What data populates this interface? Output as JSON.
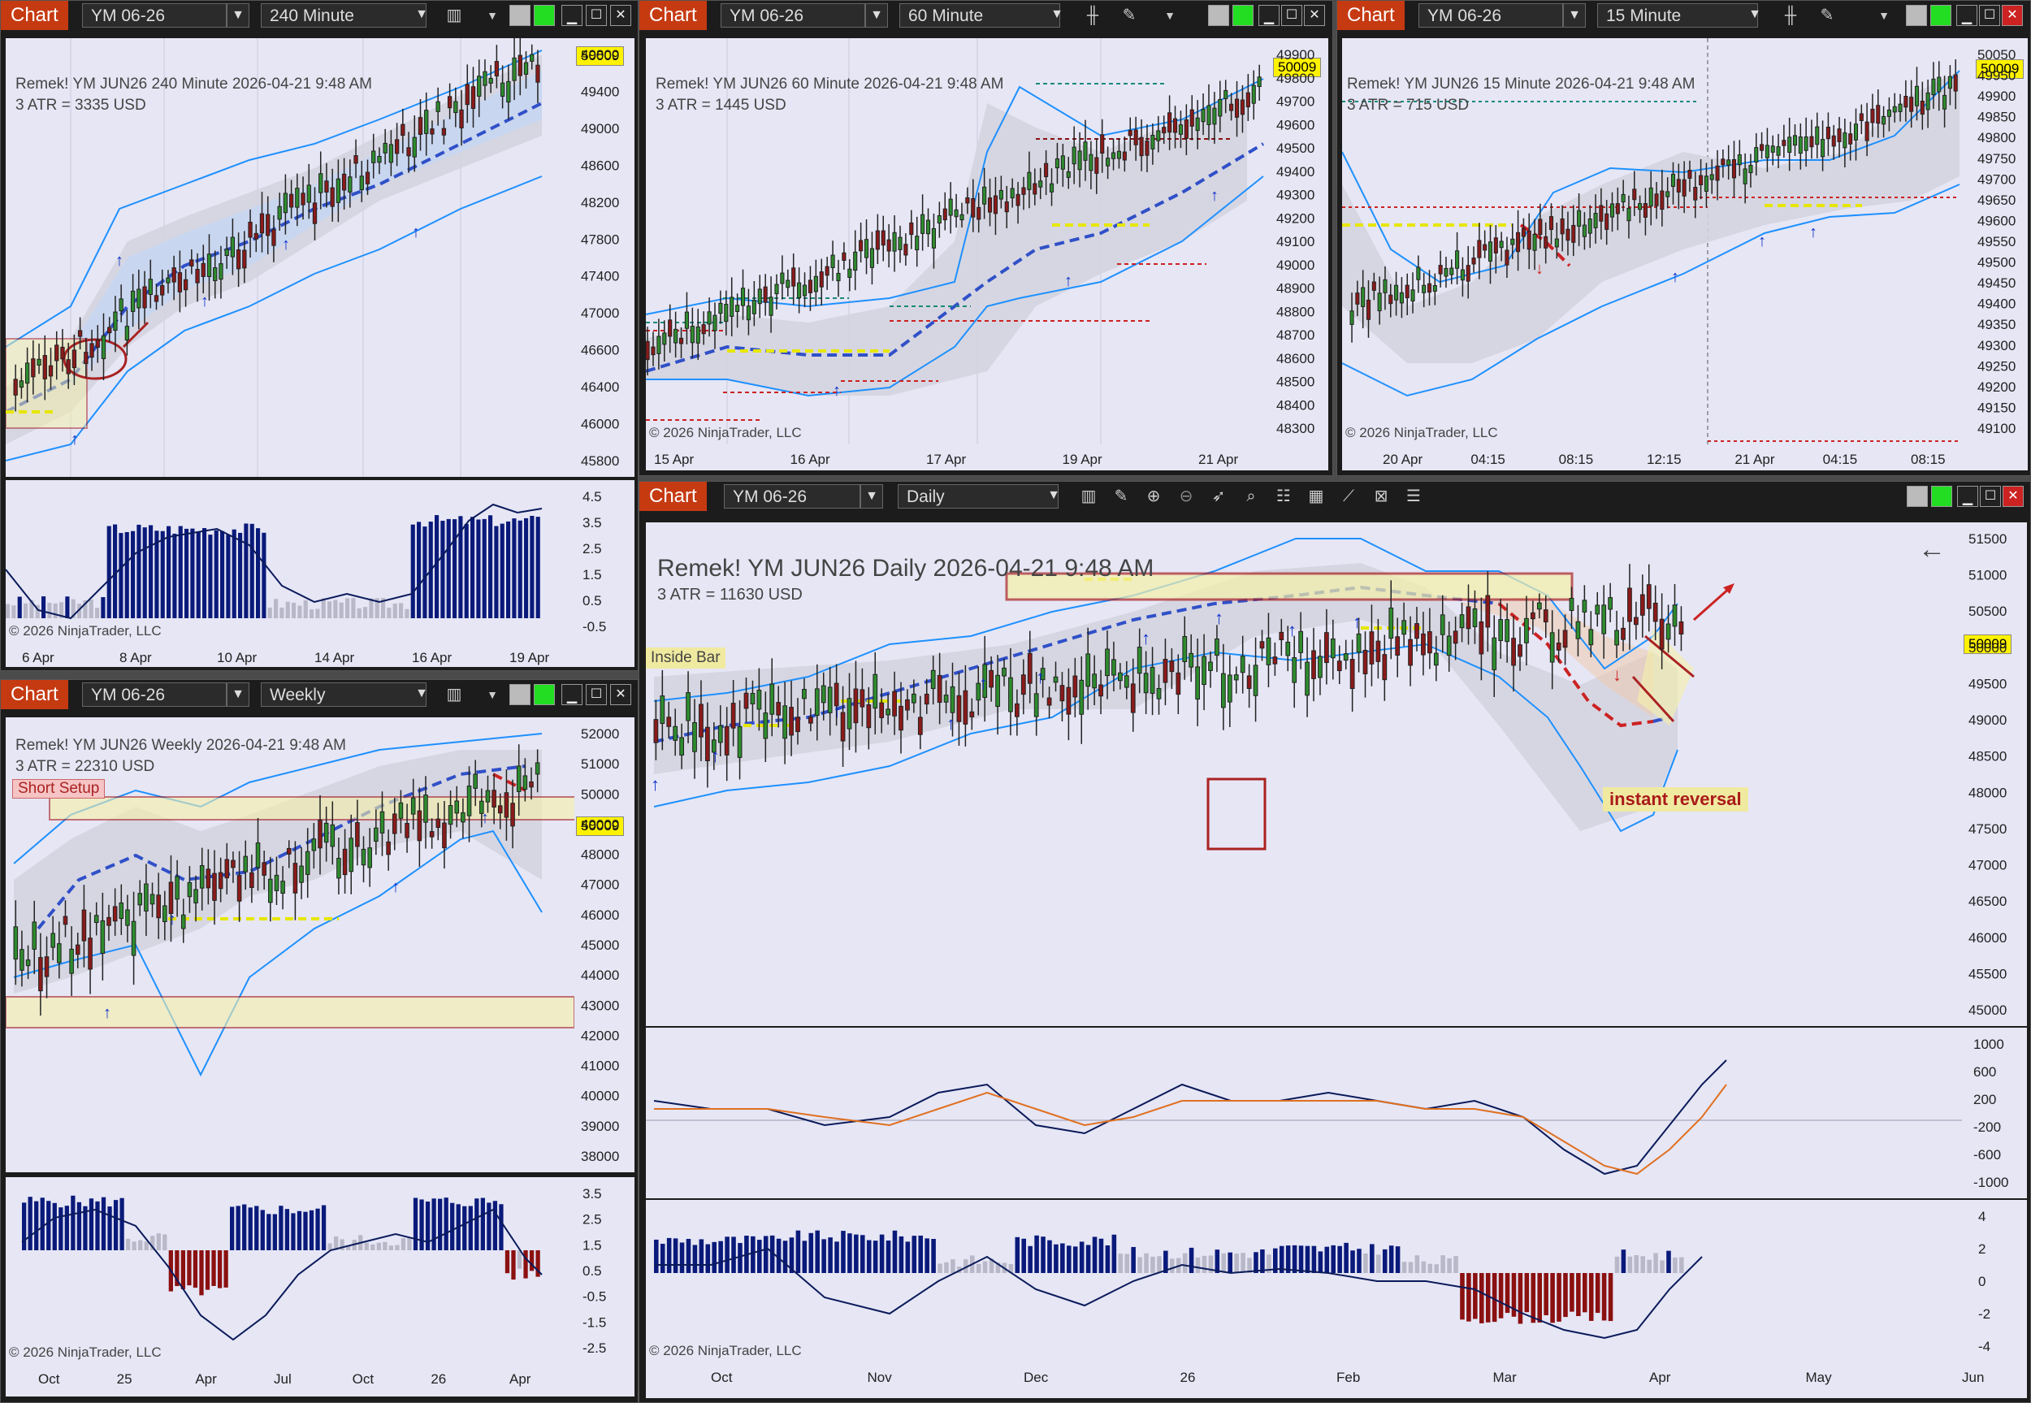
{
  "charts": [
    {
      "id": "c240",
      "tag": "Chart",
      "symbol": "YM 06-26",
      "interval": "240 Minute",
      "header": "Remek!  YM JUN26  240 Minute  2026-04-21 9:48 AM",
      "atr": "3 ATR = 3335 USD",
      "price_badge": "50009",
      "copyright": "© 2026 NinjaTrader, LLC",
      "y_ticks": [
        "49800",
        "49400",
        "49000",
        "48600",
        "48200",
        "47800",
        "47400",
        "47000",
        "46600",
        "46400",
        "46000",
        "45800"
      ],
      "ind_ticks": [
        "4.5",
        "3.5",
        "2.5",
        "1.5",
        "0.5",
        "-0.5"
      ],
      "x_ticks": [
        "6 Apr",
        "8 Apr",
        "10 Apr",
        "14 Apr",
        "16 Apr",
        "19 Apr"
      ]
    },
    {
      "id": "c60",
      "tag": "Chart",
      "symbol": "YM 06-26",
      "interval": "60 Minute",
      "header": "Remek!  YM JUN26  60 Minute  2026-04-21 9:48 AM",
      "atr": "3 ATR = 1445 USD",
      "price_badge": "50009",
      "copyright": "© 2026 NinjaTrader, LLC",
      "y_ticks": [
        "49900",
        "49800",
        "49700",
        "49600",
        "49500",
        "49400",
        "49300",
        "49200",
        "49100",
        "49000",
        "48900",
        "48800",
        "48700",
        "48600",
        "48500",
        "48400",
        "48300"
      ],
      "x_ticks": [
        "15 Apr",
        "16 Apr",
        "17 Apr",
        "19 Apr",
        "21 Apr"
      ]
    },
    {
      "id": "c15",
      "tag": "Chart",
      "symbol": "YM 06-26",
      "interval": "15 Minute",
      "header": "Remek!  YM JUN26  15 Minute  2026-04-21 9:48 AM",
      "atr": "3 ATR = 715 USD",
      "price_badge": "50009",
      "copyright": "© 2026 NinjaTrader, LLC",
      "y_ticks": [
        "50050",
        "49950",
        "49900",
        "49850",
        "49800",
        "49750",
        "49700",
        "49650",
        "49600",
        "49550",
        "49500",
        "49450",
        "49400",
        "49350",
        "49300",
        "49250",
        "49200",
        "49150",
        "49100"
      ],
      "x_ticks": [
        "20 Apr",
        "04:15",
        "08:15",
        "12:15",
        "21 Apr",
        "04:15",
        "08:15"
      ]
    },
    {
      "id": "cweekly",
      "tag": "Chart",
      "symbol": "YM 06-26",
      "interval": "Weekly",
      "header": "Remek!  YM JUN26  Weekly  2026-04-21 9:48 AM",
      "atr": "3 ATR = 22310 USD",
      "setup_label": "Short Setup",
      "price_badge": "50009",
      "copyright": "© 2026 NinjaTrader, LLC",
      "y_ticks": [
        "52000",
        "51000",
        "50000",
        "49000",
        "48000",
        "47000",
        "46000",
        "45000",
        "44000",
        "43000",
        "42000",
        "41000",
        "40000",
        "39000",
        "38000"
      ],
      "ind_ticks": [
        "3.5",
        "2.5",
        "1.5",
        "0.5",
        "-0.5",
        "-1.5",
        "-2.5"
      ],
      "x_ticks": [
        "Oct",
        "25",
        "Apr",
        "Jul",
        "Oct",
        "26",
        "Apr"
      ]
    },
    {
      "id": "cdaily",
      "tag": "Chart",
      "symbol": "YM 06-26",
      "interval": "Daily",
      "header": "Remek!  YM JUN26  Daily  2026-04-21 9:48 AM",
      "atr": "3 ATR = 11630 USD",
      "inside_bar": "Inside Bar",
      "annotation": "instant reversal",
      "price_badge": "50009",
      "copyright": "© 2026 NinjaTrader, LLC",
      "y_ticks": [
        "51500",
        "51000",
        "50500",
        "50000",
        "49500",
        "49000",
        "48500",
        "48000",
        "47500",
        "47000",
        "46500",
        "46000",
        "45500",
        "45000"
      ],
      "macd_ticks": [
        "1000",
        "600",
        "200",
        "-200",
        "-600",
        "-1000"
      ],
      "ind_ticks": [
        "4",
        "2",
        "0",
        "-2",
        "-4"
      ],
      "x_ticks": [
        "Oct",
        "Nov",
        "Dec",
        "26",
        "Feb",
        "Mar",
        "Apr",
        "May",
        "Jun"
      ]
    }
  ],
  "colors": {
    "chart_tag": "#c63a12",
    "bg": "#e6e6f5",
    "up_candle": "#2e8b2e",
    "down_candle": "#8b1a1a",
    "band": "#1e90ff",
    "midline": "#3050c8",
    "histogram": "#0a1a7a",
    "badge": "#fff200"
  }
}
